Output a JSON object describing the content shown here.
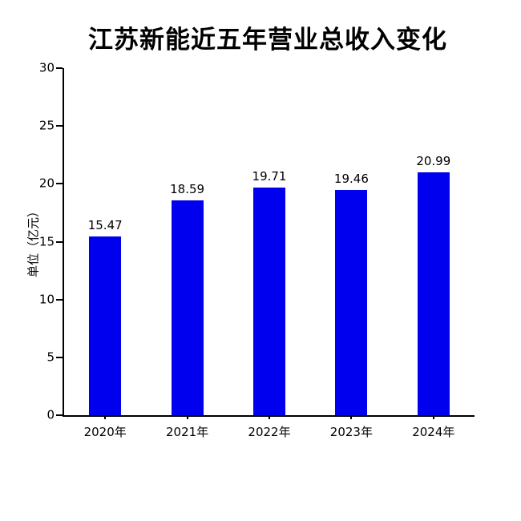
{
  "chart_data": {
    "type": "bar",
    "title": "江苏新能近五年营业总收入变化",
    "categories": [
      "2020年",
      "2021年",
      "2022年",
      "2023年",
      "2024年"
    ],
    "values": [
      15.47,
      18.59,
      19.71,
      19.46,
      20.99
    ],
    "value_labels": [
      "15.47",
      "18.59",
      "19.71",
      "19.46",
      "20.99"
    ],
    "xlabel": "",
    "ylabel": "单位（亿元）",
    "ylim": [
      0,
      30
    ],
    "yticks": [
      0,
      5,
      10,
      15,
      20,
      25,
      30
    ],
    "grid": false,
    "legend": "none",
    "bar_color": "#0000ee",
    "background_color": "#ffffff",
    "text_color": "#000000"
  }
}
